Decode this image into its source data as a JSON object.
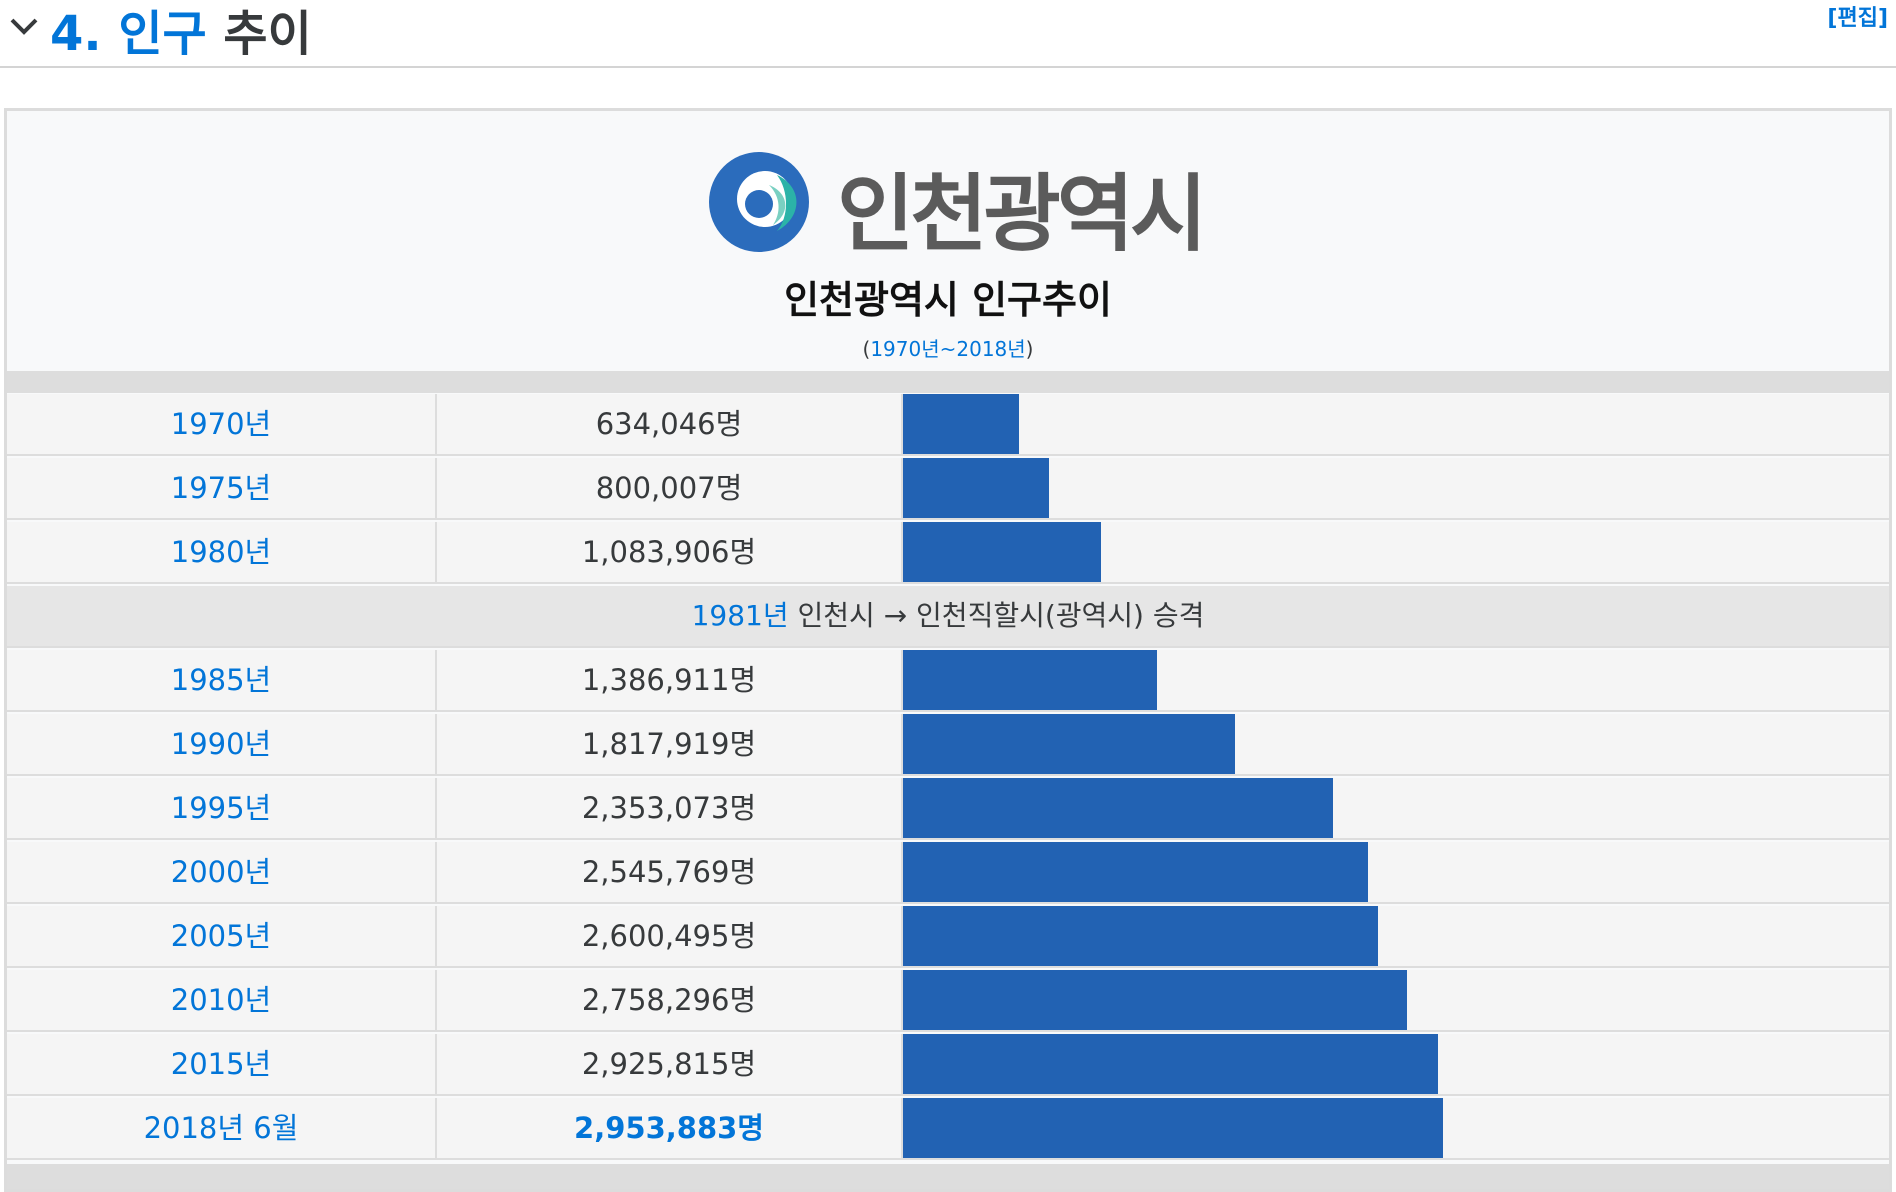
{
  "section": {
    "number": "4.",
    "link_word": "인구",
    "rest_word": "추이",
    "edit_label": "[편집]"
  },
  "logo": {
    "text": "인천광역시"
  },
  "table": {
    "title": "인천광역시 인구추이",
    "sub_open": "(",
    "sub_link": "1970년~2018년",
    "sub_close": ")"
  },
  "chart_data": {
    "type": "bar",
    "title": "인천광역시 인구추이",
    "subtitle": "(1970년~2018년)",
    "categories": [
      "1970년",
      "1975년",
      "1980년",
      "1985년",
      "1990년",
      "1995년",
      "2000년",
      "2005년",
      "2010년",
      "2015년",
      "2018년 6월"
    ],
    "values": [
      634046,
      800007,
      1083906,
      1386911,
      1817919,
      2353073,
      2545769,
      2600495,
      2758296,
      2925815,
      2953883
    ],
    "value_labels": [
      "634,046명",
      "800,007명",
      "1,083,906명",
      "1,386,911명",
      "1,817,919명",
      "2,353,073명",
      "2,545,769명",
      "2,600,495명",
      "2,758,296명",
      "2,925,815명",
      "2,953,883명"
    ],
    "orientation": "horizontal",
    "bar_color": "#2262b3",
    "annotation": {
      "after_index": 2,
      "year": "1981년",
      "text": " 인천시 → 인천직할시(광역시) 승격"
    }
  }
}
